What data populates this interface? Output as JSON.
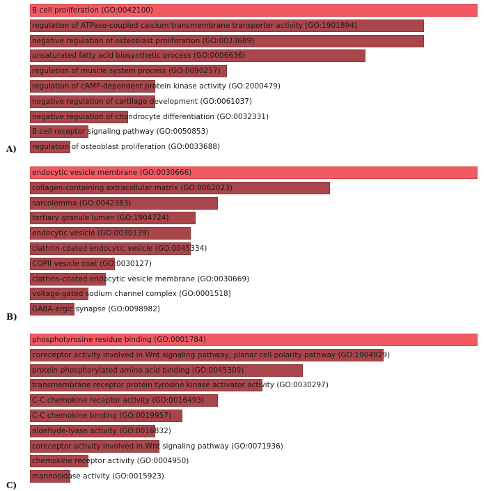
{
  "colors": {
    "top_bar": "#f25a62",
    "bar": "#a8464b",
    "bar_border": "#8a3a3d"
  },
  "chart_data": [
    {
      "type": "bar",
      "orientation": "horizontal",
      "panel_label": "A)",
      "categories": [
        "B cell proliferation (GO:0042100)",
        "regulation of ATPase-coupled calcium transmembrane transporter activity (GO:1901894)",
        "negative regulation of osteoblast proliferation (GO:0033689)",
        "unsaturated fatty acid biosynthetic process (GO:0006636)",
        "regulation of muscle system process (GO:0090257)",
        "regulation of cAMP-dependent protein kinase activity (GO:2000479)",
        "negative regulation of cartilage development (GO:0061037)",
        "negative regulation of chondrocyte differentiation (GO:0032331)",
        "B cell receptor signaling pathway (GO:0050853)",
        "regulation of osteoblast proliferation (GO:0033688)"
      ],
      "values": [
        100,
        88,
        88,
        75,
        44,
        28,
        28,
        22,
        13,
        9
      ],
      "xlim": [
        0,
        100
      ]
    },
    {
      "type": "bar",
      "orientation": "horizontal",
      "panel_label": "B)",
      "categories": [
        "endocytic vesicle membrane (GO:0030666)",
        "collagen-containing extracellular matrix (GO:0062023)",
        "sarcolemma (GO:0042383)",
        "tertiary granule lumen (GO:1904724)",
        "endocytic vesicle (GO:0030139)",
        "clathrin-coated endocytic vesicle (GO:0045334)",
        "COPII vesicle coat (GO:0030127)",
        "clathrin-coated endocytic vesicle membrane (GO:0030669)",
        "voltage-gated sodium channel complex (GO:0001518)",
        "GABA-ergic synapse (GO:0098982)"
      ],
      "values": [
        100,
        67,
        42,
        37,
        36,
        36,
        19,
        17,
        13,
        10
      ],
      "xlim": [
        0,
        100
      ]
    },
    {
      "type": "bar",
      "orientation": "horizontal",
      "panel_label": "C)",
      "categories": [
        "phosphotyrosine residue binding (GO:0001784)",
        "coreceptor activity involved in Wnt signaling pathway, planar cell polarity pathway (GO:1904929)",
        "protein phosphorylated amino acid binding (GO:0045309)",
        "transmembrane receptor protein tyrosine kinase activator activity (GO:0030297)",
        "C-C chemokine receptor activity (GO:0016493)",
        "C-C chemokine binding (GO:0019957)",
        "aldehyde-lyase activity (GO:0016832)",
        "coreceptor activity involved in Wnt signaling pathway (GO:0071936)",
        "chemokine receptor activity (GO:0004950)",
        "mannosidase activity (GO:0015923)"
      ],
      "values": [
        100,
        79,
        61,
        52,
        42,
        34,
        28,
        29,
        13,
        9
      ],
      "xlim": [
        0,
        100
      ]
    }
  ]
}
